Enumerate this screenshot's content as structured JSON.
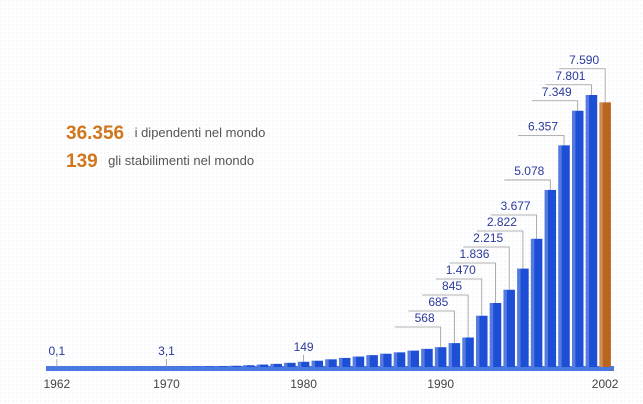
{
  "chart_data": {
    "type": "bar",
    "annotations": [
      {
        "value_text": "36.356",
        "text": "i dipendenti nel mondo"
      },
      {
        "value_text": "139",
        "text": "gli stabilimenti nel mondo"
      }
    ],
    "categories": [
      "1962",
      null,
      null,
      null,
      null,
      null,
      null,
      null,
      "1970",
      null,
      null,
      null,
      null,
      null,
      null,
      null,
      null,
      null,
      "1980",
      null,
      null,
      null,
      null,
      null,
      null,
      null,
      null,
      null,
      "1990",
      null,
      null,
      null,
      null,
      null,
      null,
      null,
      null,
      null,
      null,
      null,
      "2002"
    ],
    "values": [
      0.1,
      0.3,
      0.5,
      0.8,
      1,
      1.5,
      2,
      2.5,
      3.1,
      5,
      10,
      15,
      25,
      35,
      50,
      70,
      90,
      120,
      149,
      180,
      220,
      260,
      300,
      340,
      380,
      420,
      470,
      520,
      568,
      685,
      845,
      1470,
      1836,
      2215,
      2822,
      3677,
      5078,
      6357,
      7349,
      7801,
      7590
    ],
    "value_labels": [
      "0,1",
      null,
      null,
      null,
      null,
      null,
      null,
      null,
      "3,1",
      null,
      null,
      null,
      null,
      null,
      null,
      null,
      null,
      null,
      "149",
      null,
      null,
      null,
      null,
      null,
      null,
      null,
      null,
      null,
      "568",
      "685",
      "845",
      "1.470",
      "1.836",
      "2.215",
      "2.822",
      "3.677",
      "5.078",
      "6.357",
      "7.349",
      "7.801",
      "7.590"
    ],
    "color": "#1d4fd6",
    "colors": [
      "#1d4fd6",
      "#1d4fd6",
      "#1d4fd6",
      "#1d4fd6",
      "#1d4fd6",
      "#1d4fd6",
      "#1d4fd6",
      "#1d4fd6",
      "#1d4fd6",
      "#1d4fd6",
      "#1d4fd6",
      "#1d4fd6",
      "#1d4fd6",
      "#1d4fd6",
      "#1d4fd6",
      "#1d4fd6",
      "#1d4fd6",
      "#1d4fd6",
      "#1d4fd6",
      "#1d4fd6",
      "#1d4fd6",
      "#1d4fd6",
      "#1d4fd6",
      "#1d4fd6",
      "#1d4fd6",
      "#1d4fd6",
      "#1d4fd6",
      "#1d4fd6",
      "#1d4fd6",
      "#1d4fd6",
      "#1d4fd6",
      "#1d4fd6",
      "#1d4fd6",
      "#1d4fd6",
      "#1d4fd6",
      "#1d4fd6",
      "#1d4fd6",
      "#1d4fd6",
      "#1d4fd6",
      "#1d4fd6",
      "#b8651e"
    ]
  }
}
